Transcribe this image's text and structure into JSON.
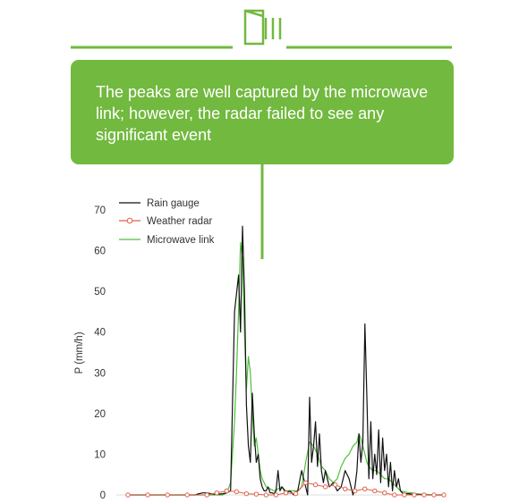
{
  "colors": {
    "accent_green": "#72b93f",
    "gauge": "#111111",
    "radar": "#e0604a",
    "link": "#4fc03a"
  },
  "header": {
    "icon": "microwave-link-logo-icon"
  },
  "callout": {
    "text": "The peaks are well captured by the microwave link; however, the radar failed to see any significant event"
  },
  "chart_data": {
    "type": "line",
    "xlabel": "",
    "ylabel": "P (mm/h)",
    "ylim": [
      0,
      70
    ],
    "xlim": [
      0,
      160
    ],
    "yticks": [
      0,
      10,
      20,
      30,
      40,
      50,
      60,
      70
    ],
    "grid": false,
    "legend_position": "top-left",
    "series": [
      {
        "name": "Rain gauge",
        "color": "#111111",
        "marker": "none",
        "x": [
          0,
          5,
          10,
          15,
          20,
          25,
          30,
          34,
          36,
          38,
          40,
          42,
          44,
          46,
          48,
          50,
          52,
          54,
          56,
          57,
          58,
          59,
          60,
          61,
          62,
          63,
          64,
          65,
          66,
          67,
          68,
          69,
          70,
          71,
          72,
          73,
          74,
          75,
          76,
          77,
          78,
          80,
          82,
          84,
          86,
          88,
          90,
          91,
          92,
          93,
          94,
          95,
          96,
          97,
          98,
          99,
          100,
          101,
          102,
          104,
          106,
          108,
          110,
          112,
          114,
          115,
          116,
          117,
          118,
          119,
          120,
          121,
          122,
          123,
          124,
          125,
          126,
          127,
          128,
          129,
          130,
          131,
          132,
          133,
          134,
          135,
          136,
          137,
          138,
          139,
          140,
          142,
          144,
          146,
          148,
          150,
          152,
          154,
          156,
          158,
          160
        ],
        "y": [
          0,
          0,
          0,
          0,
          0,
          0,
          0,
          0,
          0.3,
          0.5,
          0.5,
          0.3,
          0.2,
          0.2,
          0.3,
          0.5,
          1,
          45,
          54,
          40,
          66,
          50,
          22,
          12,
          8,
          25,
          15,
          8,
          10,
          4,
          2,
          1,
          1,
          2,
          0.5,
          0.5,
          0.3,
          1,
          6,
          1,
          2,
          0.5,
          1,
          0,
          1,
          6,
          2,
          0,
          24,
          8,
          12,
          18,
          7,
          15,
          6,
          3,
          6,
          4,
          2,
          3,
          1,
          2,
          6,
          4,
          0,
          2,
          6,
          15,
          8,
          13,
          42,
          24,
          4,
          18,
          4,
          10,
          5,
          16,
          3,
          14,
          6,
          10,
          2,
          8,
          1,
          6,
          2,
          4,
          1,
          0.5,
          0.3,
          0.3,
          0.2,
          0.1,
          0.1,
          0.1,
          0,
          0,
          0,
          0,
          0
        ]
      },
      {
        "name": "Weather radar",
        "color": "#e0604a",
        "marker": "circle",
        "x": [
          0,
          10,
          20,
          30,
          40,
          45,
          50,
          55,
          60,
          65,
          70,
          75,
          80,
          85,
          90,
          95,
          100,
          105,
          110,
          115,
          120,
          125,
          130,
          135,
          140,
          145,
          150,
          155,
          160
        ],
        "y": [
          0,
          0,
          0,
          0,
          0,
          0.5,
          1,
          0.8,
          0.3,
          0.2,
          0,
          0,
          0.5,
          0.3,
          3,
          2.5,
          2,
          2.5,
          1.5,
          1,
          1.5,
          1,
          0.5,
          0,
          0,
          0,
          0,
          0,
          0
        ]
      },
      {
        "name": "Microwave link",
        "color": "#4fc03a",
        "marker": "none",
        "x": [
          0,
          10,
          20,
          30,
          40,
          48,
          50,
          52,
          54,
          55,
          56,
          57,
          58,
          59,
          60,
          61,
          62,
          63,
          64,
          65,
          66,
          67,
          68,
          69,
          70,
          72,
          74,
          76,
          78,
          80,
          82,
          84,
          86,
          88,
          90,
          92,
          94,
          96,
          98,
          100,
          102,
          104,
          106,
          108,
          110,
          112,
          114,
          116,
          117,
          118,
          119,
          120,
          121,
          122,
          124,
          126,
          128,
          130,
          132,
          134,
          136,
          138,
          140,
          142,
          144,
          146,
          148,
          150,
          152,
          154,
          156,
          158,
          160
        ],
        "y": [
          0,
          0,
          0,
          0,
          0,
          0,
          0.5,
          3,
          18,
          30,
          45,
          62,
          58,
          40,
          26,
          34,
          30,
          20,
          12,
          14,
          10,
          6,
          4,
          3,
          2,
          1.5,
          1,
          1.5,
          2,
          1,
          1,
          1,
          1,
          2,
          8,
          13,
          12,
          10,
          7,
          6,
          4,
          3,
          4,
          7,
          9,
          10,
          12,
          13,
          15,
          14,
          12,
          10,
          8,
          7,
          6,
          6,
          5,
          4,
          4,
          3,
          2,
          1,
          0.8,
          0.6,
          0.5,
          0.3,
          0.2,
          0.1,
          0.1,
          0,
          0,
          0,
          0
        ]
      }
    ]
  }
}
